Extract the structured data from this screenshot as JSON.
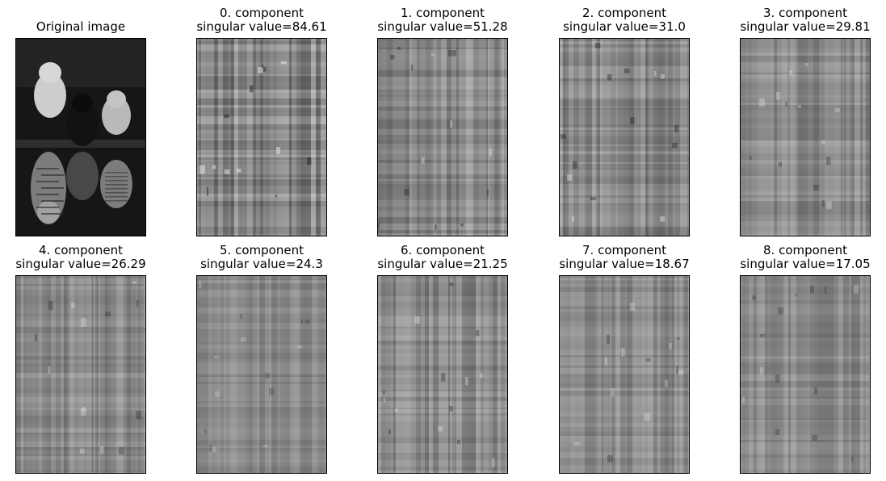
{
  "figure": {
    "panels": [
      {
        "title": "Original image",
        "kind": "original",
        "seed": 1
      },
      {
        "title": "0. component\nsingular value=84.61",
        "kind": "component",
        "seed": 11,
        "contrast": 0.95
      },
      {
        "title": "1. component\nsingular value=51.28",
        "kind": "component",
        "seed": 22,
        "contrast": 0.7
      },
      {
        "title": "2. component\nsingular value=31.0",
        "kind": "component",
        "seed": 33,
        "contrast": 0.75
      },
      {
        "title": "3. component\nsingular value=29.81",
        "kind": "component",
        "seed": 44,
        "contrast": 0.6
      },
      {
        "title": "4. component\nsingular value=26.29",
        "kind": "component",
        "seed": 55,
        "contrast": 0.6
      },
      {
        "title": "5. component\nsingular value=24.3",
        "kind": "component",
        "seed": 66,
        "contrast": 0.45
      },
      {
        "title": "6. component\nsingular value=21.25",
        "kind": "component",
        "seed": 77,
        "contrast": 0.65
      },
      {
        "title": "7. component\nsingular value=18.67",
        "kind": "component",
        "seed": 88,
        "contrast": 0.6
      },
      {
        "title": "8. component\nsingular value=17.05",
        "kind": "component",
        "seed": 99,
        "contrast": 0.55
      }
    ]
  }
}
